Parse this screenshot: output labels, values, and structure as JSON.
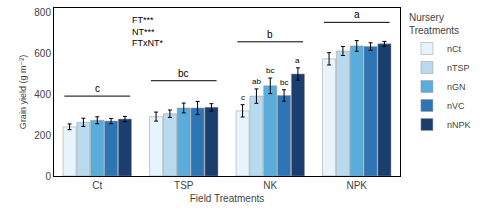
{
  "chart_data": {
    "type": "bar",
    "categories": [
      "Ct",
      "TSP",
      "NK",
      "NPK"
    ],
    "series": [
      {
        "name": "nCt",
        "color": "#e8f4fc",
        "values": [
          240,
          290,
          318,
          572
        ],
        "errors": [
          14,
          22,
          30,
          30
        ]
      },
      {
        "name": "nTSP",
        "color": "#b8d9ee",
        "values": [
          262,
          304,
          390,
          610
        ],
        "errors": [
          20,
          18,
          35,
          22
        ]
      },
      {
        "name": "nGN",
        "color": "#5aacda",
        "values": [
          272,
          332,
          440,
          635
        ],
        "errors": [
          17,
          24,
          38,
          26
        ]
      },
      {
        "name": "nVC",
        "color": "#2e75b6",
        "values": [
          268,
          332,
          393,
          632
        ],
        "errors": [
          13,
          32,
          28,
          18
        ]
      },
      {
        "name": "nNPK",
        "color": "#1a3e6e",
        "values": [
          278,
          335,
          498,
          645
        ],
        "errors": [
          13,
          18,
          30,
          12
        ]
      }
    ],
    "brackets": [
      {
        "category": "Ct",
        "y": 390,
        "label": "c"
      },
      {
        "category": "TSP",
        "y": 465,
        "label": "bc"
      },
      {
        "category": "NK",
        "y": 655,
        "label": "b"
      },
      {
        "category": "NPK",
        "y": 750,
        "label": "a"
      }
    ],
    "bar_labels": [
      {
        "category": "NK",
        "series": "nCt",
        "label": "c"
      },
      {
        "category": "NK",
        "series": "nTSP",
        "label": "ab"
      },
      {
        "category": "NK",
        "series": "nGN",
        "label": "bc"
      },
      {
        "category": "NK",
        "series": "nVC",
        "label": "bc"
      },
      {
        "category": "NK",
        "series": "nNPK",
        "label": "a"
      }
    ],
    "annotations": [
      "FT***\nNT***\nFTxNT*"
    ],
    "xlabel": "Field Treatments",
    "ylabel": "Grain yield (g m⁻²)",
    "legend_title": "Nursery\nTreatments",
    "legend": "right",
    "ylim": [
      0,
      820
    ],
    "yticks": [
      0,
      200,
      400,
      600,
      800
    ],
    "grid": false
  }
}
